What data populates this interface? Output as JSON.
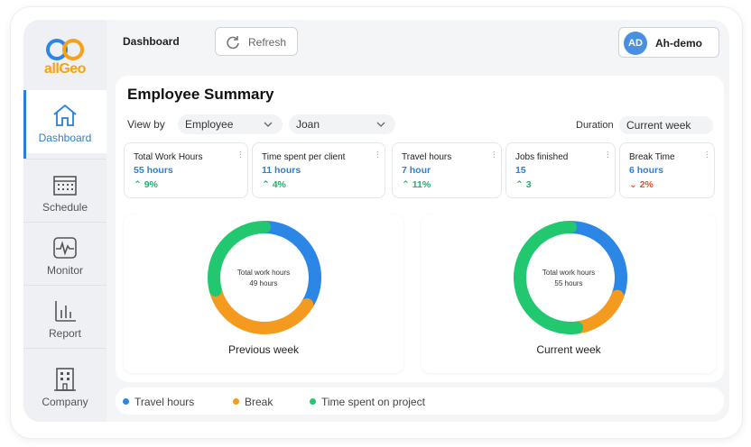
{
  "app": {
    "logo_text": "allGeo"
  },
  "colors": {
    "accent": "#2a7fd6",
    "travel": "#2b86e6",
    "break": "#f39a1f",
    "project": "#22c86f",
    "up": "#1fb06a",
    "down": "#e0532c"
  },
  "sidebar": {
    "items": [
      {
        "label": "Dashboard",
        "icon": "home-icon",
        "active": true
      },
      {
        "label": "Schedule",
        "icon": "calendar-icon",
        "active": false
      },
      {
        "label": "Monitor",
        "icon": "monitor-icon",
        "active": false
      },
      {
        "label": "Report",
        "icon": "report-icon",
        "active": false
      },
      {
        "label": "Company",
        "icon": "building-icon",
        "active": false
      }
    ]
  },
  "header": {
    "title": "Dashboard",
    "refresh_label": "Refresh",
    "user_initials": "AD",
    "user_name": "Ah-demo"
  },
  "summary": {
    "title": "Employee Summary",
    "view_by_label": "View by",
    "view_by_value": "Employee",
    "employee_value": "Joan",
    "duration_label": "Duration",
    "duration_value": "Current week"
  },
  "kpis": [
    {
      "title": "Total Work Hours",
      "value": "55 hours",
      "delta": "9%",
      "direction": "up"
    },
    {
      "title": "Time spent per client",
      "value": "11 hours",
      "delta": "4%",
      "direction": "up"
    },
    {
      "title": "Travel hours",
      "value": "7 hour",
      "delta": "11%",
      "direction": "up"
    },
    {
      "title": "Jobs finished",
      "value": "15",
      "delta": "3",
      "direction": "up"
    },
    {
      "title": "Break Time",
      "value": "6 hours",
      "delta": "2%",
      "direction": "down"
    }
  ],
  "charts": [
    {
      "label": "Previous week",
      "center_title": "Total work hours",
      "center_value": "49 hours"
    },
    {
      "label": "Current week",
      "center_title": "Total work hours",
      "center_value": "55 hours"
    }
  ],
  "chart_data": [
    {
      "type": "pie",
      "title": "Previous week",
      "categories": [
        "Travel hours",
        "Break",
        "Time spent on project"
      ],
      "values": [
        34,
        37,
        29
      ]
    },
    {
      "type": "pie",
      "title": "Current week",
      "categories": [
        "Travel hours",
        "Break",
        "Time spent on project"
      ],
      "values": [
        31,
        17,
        52
      ]
    }
  ],
  "legend": {
    "items": [
      {
        "label": "Travel hours",
        "color": "#2b86e6"
      },
      {
        "label": "Break",
        "color": "#f39a1f"
      },
      {
        "label": "Time spent on project",
        "color": "#22c86f"
      }
    ]
  }
}
